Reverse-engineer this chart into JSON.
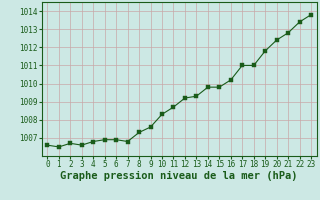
{
  "x": [
    0,
    1,
    2,
    3,
    4,
    5,
    6,
    7,
    8,
    9,
    10,
    11,
    12,
    13,
    14,
    15,
    16,
    17,
    18,
    19,
    20,
    21,
    22,
    23
  ],
  "y": [
    1006.6,
    1006.5,
    1006.7,
    1006.6,
    1006.8,
    1006.9,
    1006.9,
    1006.8,
    1007.3,
    1007.6,
    1008.3,
    1008.7,
    1009.2,
    1009.3,
    1009.8,
    1009.8,
    1010.2,
    1011.0,
    1011.0,
    1011.8,
    1012.4,
    1012.8,
    1013.4,
    1013.8
  ],
  "line_color": "#1a5c1a",
  "marker_color": "#1a5c1a",
  "bg_color": "#cce8e4",
  "grid_color_major": "#c8a8a8",
  "xlabel": "Graphe pression niveau de la mer (hPa)",
  "xlim": [
    -0.5,
    23.5
  ],
  "ylim": [
    1006.0,
    1014.5
  ],
  "yticks": [
    1007,
    1008,
    1009,
    1010,
    1011,
    1012,
    1013,
    1014
  ],
  "xticks": [
    0,
    1,
    2,
    3,
    4,
    5,
    6,
    7,
    8,
    9,
    10,
    11,
    12,
    13,
    14,
    15,
    16,
    17,
    18,
    19,
    20,
    21,
    22,
    23
  ],
  "tick_label_fontsize": 5.5,
  "xlabel_fontsize": 7.5,
  "line_width": 0.8,
  "marker_size": 2.5
}
